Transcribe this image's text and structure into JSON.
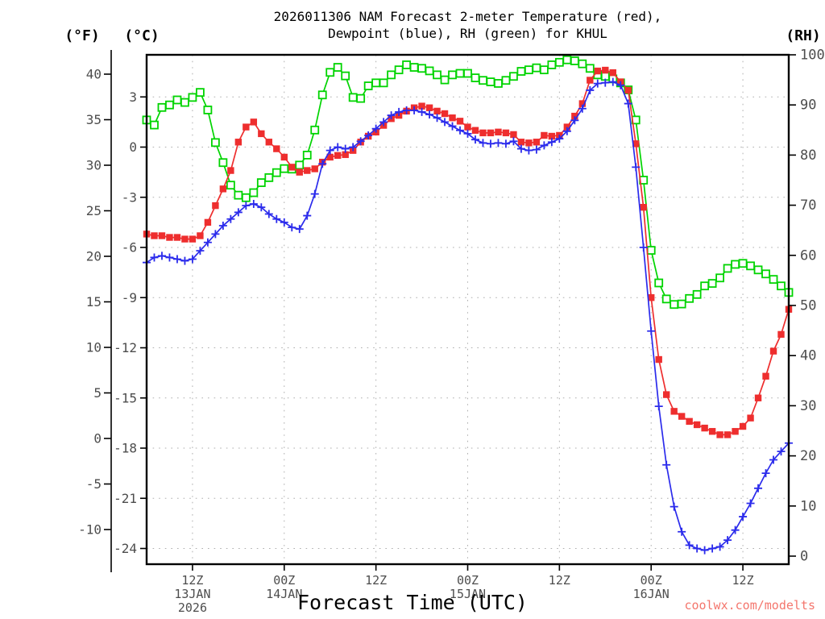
{
  "title": {
    "line1": "2026011306 NAM Forecast 2-meter Temperature (red),",
    "line2": "Dewpoint (blue), RH (green) for KHUL"
  },
  "watermark": "coolwx.com/modelts",
  "axes": {
    "fahrenheit": {
      "unit": "(°F)",
      "ticks": [
        40,
        35,
        30,
        25,
        20,
        15,
        10,
        5,
        0,
        -5,
        -10
      ]
    },
    "celsius": {
      "unit": "(°C)",
      "ticks": [
        3,
        0,
        -3,
        -6,
        -9,
        -12,
        -15,
        -18,
        -21,
        -24
      ]
    },
    "rh": {
      "unit": "(RH)",
      "ticks": [
        100,
        90,
        80,
        70,
        60,
        50,
        40,
        30,
        20,
        10,
        0
      ]
    },
    "x": {
      "title": "Forecast Time (UTC)",
      "ticks": [
        {
          "hour": 6,
          "time": "12Z",
          "date": "13JAN",
          "year": "2026"
        },
        {
          "hour": 18,
          "time": "00Z",
          "date": "14JAN"
        },
        {
          "hour": 30,
          "time": "12Z"
        },
        {
          "hour": 42,
          "time": "00Z",
          "date": "15JAN"
        },
        {
          "hour": 54,
          "time": "12Z"
        },
        {
          "hour": 66,
          "time": "00Z",
          "date": "16JAN"
        },
        {
          "hour": 78,
          "time": "12Z"
        }
      ]
    }
  },
  "colors": {
    "temperature": "#ee2e2e",
    "dewpoint": "#2b2bec",
    "rh": "#00d400",
    "gridline": "#aeaeae",
    "tick_text": "#4d4d4d",
    "frame": "#000000",
    "watermark": "#f4766d"
  },
  "chart_data": {
    "type": "line",
    "title": "2026011306 NAM Forecast 2-meter Temperature (red), Dewpoint (blue), RH (green) for KHUL",
    "station": "KHUL",
    "model_run": "2026011306 NAM",
    "xlabel": "Forecast Time (UTC)",
    "x_axis": {
      "start": "06Z 13JAN2026",
      "end": "18Z 16JAN2026",
      "step_hours": 1,
      "hours_total": 84
    },
    "y_axis_celsius": {
      "tick_min": -24,
      "tick_max": 3,
      "tick_step": 3
    },
    "y_axis_fahrenheit": {
      "tick_min": -10,
      "tick_max": 40,
      "tick_step": 5
    },
    "y_axis_rh": {
      "tick_min": 0,
      "tick_max": 100,
      "tick_step": 10
    },
    "grid": "dotted",
    "legend_position": "in-title",
    "series": [
      {
        "name": "2-meter Temperature",
        "axis": "celsius",
        "marker": "filled-square",
        "color_key": "temperature",
        "values": [
          -5.2,
          -5.3,
          -5.3,
          -5.4,
          -5.4,
          -5.5,
          -5.5,
          -5.3,
          -4.5,
          -3.5,
          -2.5,
          -1.4,
          0.3,
          1.2,
          1.5,
          0.8,
          0.3,
          -0.1,
          -0.6,
          -1.2,
          -1.5,
          -1.4,
          -1.3,
          -0.9,
          -0.6,
          -0.5,
          -0.45,
          -0.2,
          0.3,
          0.65,
          0.9,
          1.3,
          1.7,
          1.9,
          2.15,
          2.35,
          2.45,
          2.35,
          2.15,
          2.0,
          1.75,
          1.55,
          1.2,
          1.0,
          0.85,
          0.85,
          0.9,
          0.85,
          0.75,
          0.3,
          0.25,
          0.3,
          0.7,
          0.65,
          0.7,
          1.2,
          1.85,
          2.6,
          4.0,
          4.55,
          4.6,
          4.45,
          3.9,
          3.4,
          0.2,
          -3.6,
          -9.0,
          -12.7,
          -14.8,
          -15.8,
          -16.1,
          -16.4,
          -16.6,
          -16.8,
          -17.0,
          -17.2,
          -17.2,
          -17.0,
          -16.7,
          -16.2,
          -15.0,
          -13.7,
          -12.2,
          -11.2,
          -9.7
        ]
      },
      {
        "name": "Dewpoint",
        "axis": "celsius",
        "marker": "plus",
        "color_key": "dewpoint",
        "values": [
          -6.9,
          -6.6,
          -6.5,
          -6.6,
          -6.7,
          -6.8,
          -6.7,
          -6.2,
          -5.7,
          -5.2,
          -4.7,
          -4.3,
          -3.9,
          -3.5,
          -3.4,
          -3.6,
          -4.0,
          -4.3,
          -4.5,
          -4.8,
          -4.9,
          -4.1,
          -2.8,
          -1.0,
          -0.2,
          0.0,
          -0.1,
          0.0,
          0.35,
          0.7,
          1.1,
          1.5,
          1.9,
          2.1,
          2.2,
          2.2,
          2.1,
          1.95,
          1.75,
          1.5,
          1.25,
          1.0,
          0.8,
          0.45,
          0.25,
          0.2,
          0.25,
          0.2,
          0.35,
          -0.1,
          -0.2,
          -0.15,
          0.1,
          0.3,
          0.5,
          0.95,
          1.6,
          2.3,
          3.4,
          3.8,
          3.85,
          3.9,
          3.7,
          2.6,
          -1.2,
          -6.0,
          -11.0,
          -15.5,
          -19.0,
          -21.5,
          -23.0,
          -23.8,
          -24.0,
          -24.1,
          -24.0,
          -23.9,
          -23.5,
          -22.9,
          -22.1,
          -21.3,
          -20.4,
          -19.5,
          -18.7,
          -18.2,
          -17.7
        ]
      },
      {
        "name": "RH",
        "axis": "rh",
        "marker": "open-square",
        "color_key": "rh",
        "values": [
          87,
          86,
          89.5,
          90,
          91,
          90.5,
          91.5,
          92.5,
          89,
          82.5,
          78.5,
          74,
          72,
          71.5,
          72.5,
          74.5,
          75.5,
          76.5,
          77.3,
          77.2,
          78,
          80,
          85,
          92,
          96.5,
          97.5,
          95.8,
          91.5,
          91.3,
          93.8,
          94.4,
          94.4,
          96,
          97,
          98,
          97.5,
          97.3,
          96.8,
          96,
          95,
          96,
          96.3,
          96.3,
          95.4,
          94.9,
          94.6,
          94.3,
          94.9,
          95.7,
          96.7,
          97,
          97.4,
          97,
          98,
          98.5,
          99,
          98.8,
          98.2,
          97.3,
          96,
          95.7,
          95.2,
          94.4,
          93,
          87,
          75,
          61,
          54.5,
          51.3,
          50.2,
          50.3,
          51.4,
          52.2,
          53.9,
          54.4,
          55.5,
          57.4,
          58.2,
          58.4,
          57.9,
          57.1,
          56.3,
          55.2,
          53.9,
          52.6
        ]
      }
    ]
  }
}
